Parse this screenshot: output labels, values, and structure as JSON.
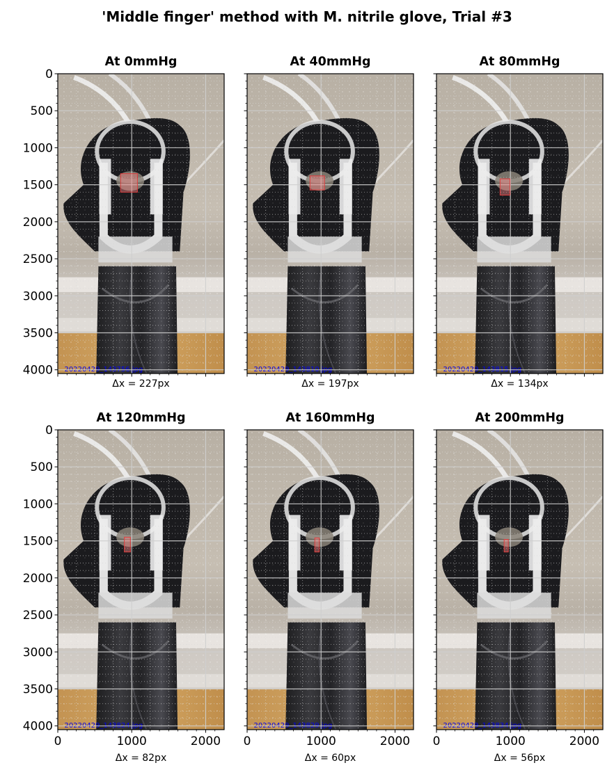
{
  "figure": {
    "suptitle": "'Middle finger' method with M. nitrile glove, Trial #3"
  },
  "chart_data": [
    {
      "type": "image",
      "title": "At 0mmHg",
      "xlabel": "Δx = 227px",
      "filename": "20220429_143756.jpg",
      "xlim": [
        0,
        2250
      ],
      "ylim": [
        4050,
        0
      ],
      "xticks": [
        0,
        1000,
        2000
      ],
      "yticks": [
        0,
        500,
        1000,
        1500,
        2000,
        2500,
        3000,
        3500,
        4000
      ],
      "grid": true,
      "roi": {
        "x": [
          850,
          1077
        ],
        "y": [
          1350,
          1600
        ]
      }
    },
    {
      "type": "image",
      "title": "At 40mmHg",
      "xlabel": "Δx = 197px",
      "filename": "20220429_143810.jpg",
      "xlim": [
        0,
        2250
      ],
      "ylim": [
        4050,
        0
      ],
      "xticks": [
        0,
        1000,
        2000
      ],
      "yticks": [
        0,
        500,
        1000,
        1500,
        2000,
        2500,
        3000,
        3500,
        4000
      ],
      "grid": true,
      "roi": {
        "x": [
          850,
          1047
        ],
        "y": [
          1380,
          1570
        ]
      }
    },
    {
      "type": "image",
      "title": "At 80mmHg",
      "xlabel": "Δx = 134px",
      "filename": "20220429_143815.jpg",
      "xlim": [
        0,
        2250
      ],
      "ylim": [
        4050,
        0
      ],
      "xticks": [
        0,
        1000,
        2000
      ],
      "yticks": [
        0,
        500,
        1000,
        1500,
        2000,
        2500,
        3000,
        3500,
        4000
      ],
      "grid": true,
      "roi": {
        "x": [
          860,
          994
        ],
        "y": [
          1420,
          1640
        ]
      }
    },
    {
      "type": "image",
      "title": "At 120mmHg",
      "xlabel": "Δx = 82px",
      "filename": "20220429_143824.jpg",
      "xlim": [
        0,
        2250
      ],
      "ylim": [
        4050,
        0
      ],
      "xticks": [
        0,
        1000,
        2000
      ],
      "yticks": [
        0,
        500,
        1000,
        1500,
        2000,
        2500,
        3000,
        3500,
        4000
      ],
      "grid": true,
      "roi": {
        "x": [
          900,
          982
        ],
        "y": [
          1450,
          1650
        ]
      }
    },
    {
      "type": "image",
      "title": "At 160mmHg",
      "xlabel": "Δx = 60px",
      "filename": "20220429_143829.jpg",
      "xlim": [
        0,
        2250
      ],
      "ylim": [
        4050,
        0
      ],
      "xticks": [
        0,
        1000,
        2000
      ],
      "yticks": [
        0,
        500,
        1000,
        1500,
        2000,
        2500,
        3000,
        3500,
        4000
      ],
      "grid": true,
      "roi": {
        "x": [
          915,
          975
        ],
        "y": [
          1460,
          1650
        ]
      }
    },
    {
      "type": "image",
      "title": "At 200mmHg",
      "xlabel": "Δx = 56px",
      "filename": "20220429_143834.jpg",
      "xlim": [
        0,
        2250
      ],
      "ylim": [
        4050,
        0
      ],
      "xticks": [
        0,
        1000,
        2000
      ],
      "yticks": [
        0,
        500,
        1000,
        1500,
        2000,
        2500,
        3000,
        3500,
        4000
      ],
      "grid": true,
      "roi": {
        "x": [
          915,
          971
        ],
        "y": [
          1480,
          1650
        ]
      }
    }
  ]
}
